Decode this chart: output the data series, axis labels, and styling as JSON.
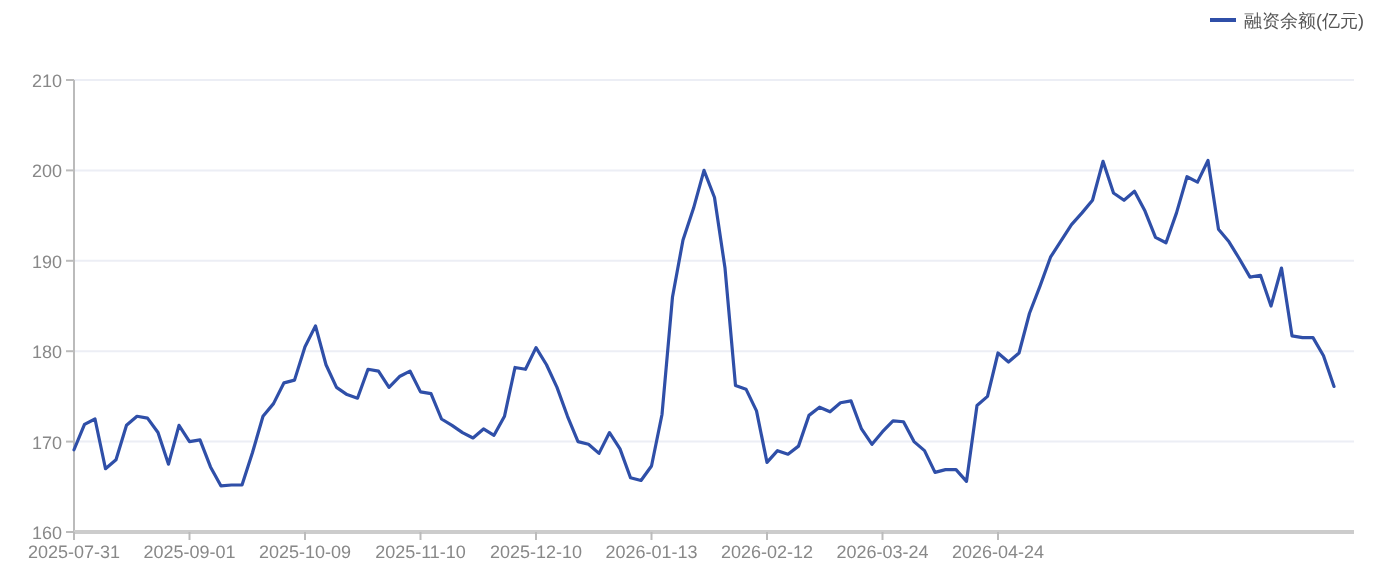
{
  "chart_data": {
    "type": "line",
    "categories": [
      "2025-07-31",
      null,
      null,
      null,
      null,
      null,
      null,
      null,
      null,
      null,
      null,
      "2025-09-01",
      null,
      null,
      null,
      null,
      null,
      null,
      null,
      null,
      null,
      null,
      "2025-10-09",
      null,
      null,
      null,
      null,
      null,
      null,
      null,
      null,
      null,
      null,
      "2025-11-10",
      null,
      null,
      null,
      null,
      null,
      null,
      null,
      null,
      null,
      null,
      "2025-12-10",
      null,
      null,
      null,
      null,
      null,
      null,
      null,
      null,
      null,
      null,
      "2026-01-13",
      null,
      null,
      null,
      null,
      null,
      null,
      null,
      null,
      null,
      null,
      "2026-02-12",
      null,
      null,
      null,
      null,
      null,
      null,
      null,
      null,
      null,
      null,
      "2026-03-24",
      null,
      null,
      null,
      null,
      null,
      null,
      null,
      null,
      null,
      null,
      "2026-04-24",
      null,
      null,
      null,
      null,
      null,
      null,
      null,
      null,
      null,
      null,
      null,
      null,
      null,
      null,
      null,
      null,
      null,
      null,
      null,
      null,
      null,
      null,
      null,
      null,
      null,
      null,
      null,
      null,
      null,
      null,
      null,
      null
    ],
    "series": [
      {
        "name": "融资余额(亿元)",
        "color": "#2f4fa8",
        "values": [
          169.1,
          171.9,
          172.5,
          167,
          168,
          171.8,
          172.8,
          172.6,
          171,
          167.5,
          171.8,
          170,
          170.2,
          167.2,
          165.1,
          165.2,
          165.2,
          168.8,
          172.8,
          174.2,
          176.5,
          176.8,
          180.5,
          182.8,
          178.5,
          176,
          175.2,
          174.8,
          178,
          177.8,
          176,
          177.2,
          177.8,
          175.5,
          175.3,
          172.5,
          171.8,
          171,
          170.4,
          171.4,
          170.7,
          172.8,
          178.2,
          178,
          180.4,
          178.5,
          176,
          172.8,
          170,
          169.7,
          168.7,
          171,
          169.2,
          166,
          165.7,
          167.3,
          173,
          186,
          192.3,
          195.8,
          200,
          197,
          189.2,
          176.2,
          175.8,
          173.4,
          167.7,
          169,
          168.6,
          169.5,
          172.9,
          173.8,
          173.3,
          174.3,
          174.5,
          171.4,
          169.7,
          171.1,
          172.3,
          172.2,
          170,
          169,
          166.6,
          166.9,
          166.9,
          165.6,
          174,
          175,
          179.8,
          178.8,
          179.8,
          184.2,
          187.2,
          190.4,
          192.2,
          194,
          195.3,
          196.7,
          201,
          197.5,
          196.7,
          197.7,
          195.5,
          192.6,
          192,
          195.3,
          199.3,
          198.7,
          201.1,
          193.5,
          192.1,
          190.2,
          188.2,
          188.4,
          185,
          189.2,
          181.7,
          181.5,
          181.5,
          179.5,
          176.1
        ]
      }
    ],
    "ylim": [
      160,
      210
    ],
    "yticks": [
      160,
      170,
      180,
      190,
      200,
      210
    ],
    "grid": "y",
    "legend": "top right"
  }
}
